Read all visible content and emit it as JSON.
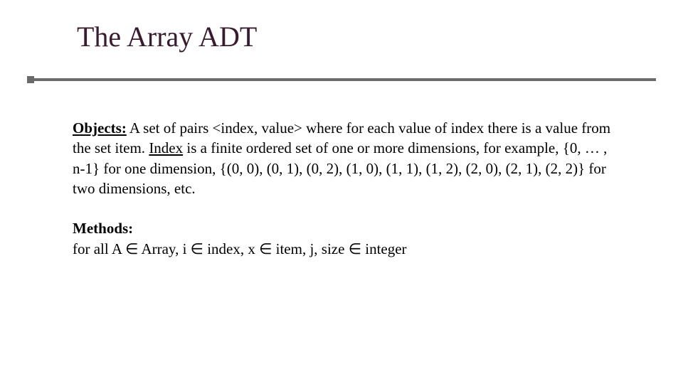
{
  "slide": {
    "title": "The Array ADT",
    "title_color": "#3a1a2f",
    "rule_color": "#6b6b6b",
    "background_color": "#ffffff",
    "text_color": "#000000",
    "title_fontsize": 40,
    "body_fontsize": 21,
    "font_family": "Times New Roman"
  },
  "content": {
    "objects_label": "Objects:",
    "objects_text_1": " A set of pairs <index, value> where for each value of index there is a value from the set item. ",
    "index_word": "Index",
    "objects_text_2": " is a finite ordered set of one or more dimensions, for example, {0, … , n-1} for one dimension, {(0, 0), (0, 1), (0, 2), (1, 0), (1, 1), (1, 2), (2, 0), (2, 1), (2, 2)} for two dimensions, etc.",
    "methods_label": "Methods:",
    "methods_text": "for all A ∈ Array, i ∈ index, x ∈ item, j, size ∈ integer"
  }
}
